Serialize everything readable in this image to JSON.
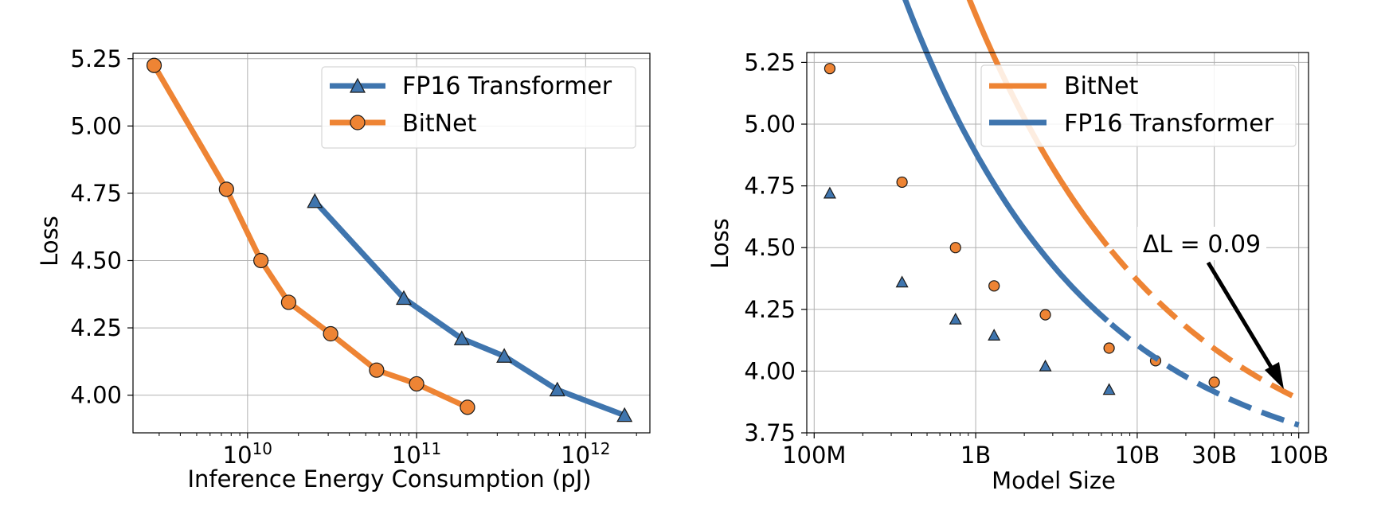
{
  "chart_data": [
    {
      "type": "line",
      "xscale": "log",
      "xlabel": "Inference Energy Consumption (pJ)",
      "ylabel": "Loss",
      "xlim": [
        2100000000.0,
        2400000000000.0
      ],
      "ylim": [
        3.86,
        5.27
      ],
      "yticks": [
        4.0,
        4.25,
        4.5,
        4.75,
        5.0,
        5.25
      ],
      "ytick_labels": [
        "4.00",
        "4.25",
        "4.50",
        "4.75",
        "5.00",
        "5.25"
      ],
      "xticks": [
        10000000000.0,
        100000000000.0,
        1000000000000.0
      ],
      "xtick_labels": [
        {
          "base": "10",
          "exp": "10"
        },
        {
          "base": "10",
          "exp": "11"
        },
        {
          "base": "10",
          "exp": "12"
        }
      ],
      "grid": true,
      "legend_position": "top-right",
      "series": [
        {
          "name": "FP16 Transformer",
          "color": "#3f75ae",
          "marker": "triangle",
          "x": [
            25000000000.0,
            84000000000.0,
            185000000000.0,
            330000000000.0,
            680000000000.0,
            1700000000000.0
          ],
          "y": [
            4.72,
            4.36,
            4.21,
            4.145,
            4.02,
            3.925
          ]
        },
        {
          "name": "BitNet",
          "color": "#ee8434",
          "marker": "circle",
          "x": [
            2800000000.0,
            7500000000.0,
            12000000000.0,
            17500000000.0,
            31000000000.0,
            58000000000.0,
            100000000000.0,
            200000000000.0
          ],
          "y": [
            5.225,
            4.765,
            4.5,
            4.345,
            4.228,
            4.093,
            4.042,
            3.955
          ]
        }
      ]
    },
    {
      "type": "line",
      "xscale": "log",
      "xlabel": "Model Size",
      "ylabel": "Loss",
      "xlim": [
        90000000.0,
        115000000000.0
      ],
      "ylim": [
        3.75,
        5.29
      ],
      "yticks": [
        3.75,
        4.0,
        4.25,
        4.5,
        4.75,
        5.0,
        5.25
      ],
      "ytick_labels": [
        "3.75",
        "4.00",
        "4.25",
        "4.50",
        "4.75",
        "5.00",
        "5.25"
      ],
      "xticks": [
        100000000.0,
        1000000000.0,
        10000000000.0,
        30000000000.0,
        100000000000.0
      ],
      "xtick_labels": [
        "100M",
        "1B",
        "10B",
        "30B",
        "100B"
      ],
      "grid": true,
      "legend_position": "top-right",
      "annotation": {
        "text": "ΔL = 0.09",
        "points_to_x": 100000000000.0
      },
      "series": [
        {
          "name": "BitNet",
          "color": "#ee8434",
          "marker": "circle",
          "fit": {
            "a": 4.35,
            "b": 0.35,
            "c": 3.5
          },
          "fit_solid_until": 6700000000.0,
          "x": [
            125000000.0,
            350000000.0,
            750000000.0,
            1300000000.0,
            2700000000.0,
            6700000000.0,
            13000000000.0,
            30000000000.0
          ],
          "y": [
            5.225,
            4.765,
            4.5,
            4.345,
            4.228,
            4.093,
            4.042,
            3.955
          ]
        },
        {
          "name": "FP16 Transformer",
          "color": "#3f75ae",
          "marker": "triangle",
          "fit": {
            "a": 3.2,
            "b": 0.38,
            "c": 3.55
          },
          "fit_solid_until": 6700000000.0,
          "x": [
            125000000.0,
            350000000.0,
            750000000.0,
            1300000000.0,
            2700000000.0,
            6700000000.0
          ],
          "y": [
            4.72,
            4.36,
            4.21,
            4.145,
            4.02,
            3.925
          ]
        }
      ]
    }
  ]
}
